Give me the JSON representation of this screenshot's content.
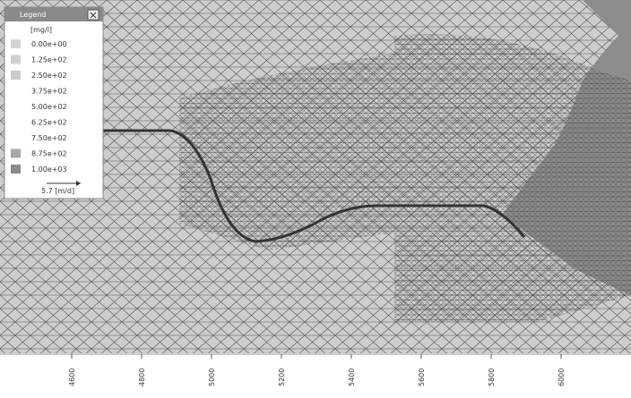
{
  "legend": {
    "title": "Legend",
    "unit": "[mg/l]",
    "items": [
      {
        "label": "0.00e+00",
        "color": "#d4d4d4"
      },
      {
        "label": "1.25e+02",
        "color": "#cfcfcf"
      },
      {
        "label": "2.50e+02",
        "color": "#cacaca"
      },
      {
        "label": "3.75e+02",
        "color": "#ffffff"
      },
      {
        "label": "5.00e+02",
        "color": "#ffffff"
      },
      {
        "label": "6.25e+02",
        "color": "#ffffff"
      },
      {
        "label": "7.50e+02",
        "color": "#ffffff"
      },
      {
        "label": "8.75e+02",
        "color": "#a8a8a8"
      },
      {
        "label": "1.00e+03",
        "color": "#8a8a8a"
      }
    ],
    "arrow_label": "5.7 [m/d]"
  },
  "axis": {
    "labels": [
      "4600",
      "4800",
      "5000",
      "5200",
      "5400",
      "5600",
      "5800",
      "6000"
    ]
  }
}
